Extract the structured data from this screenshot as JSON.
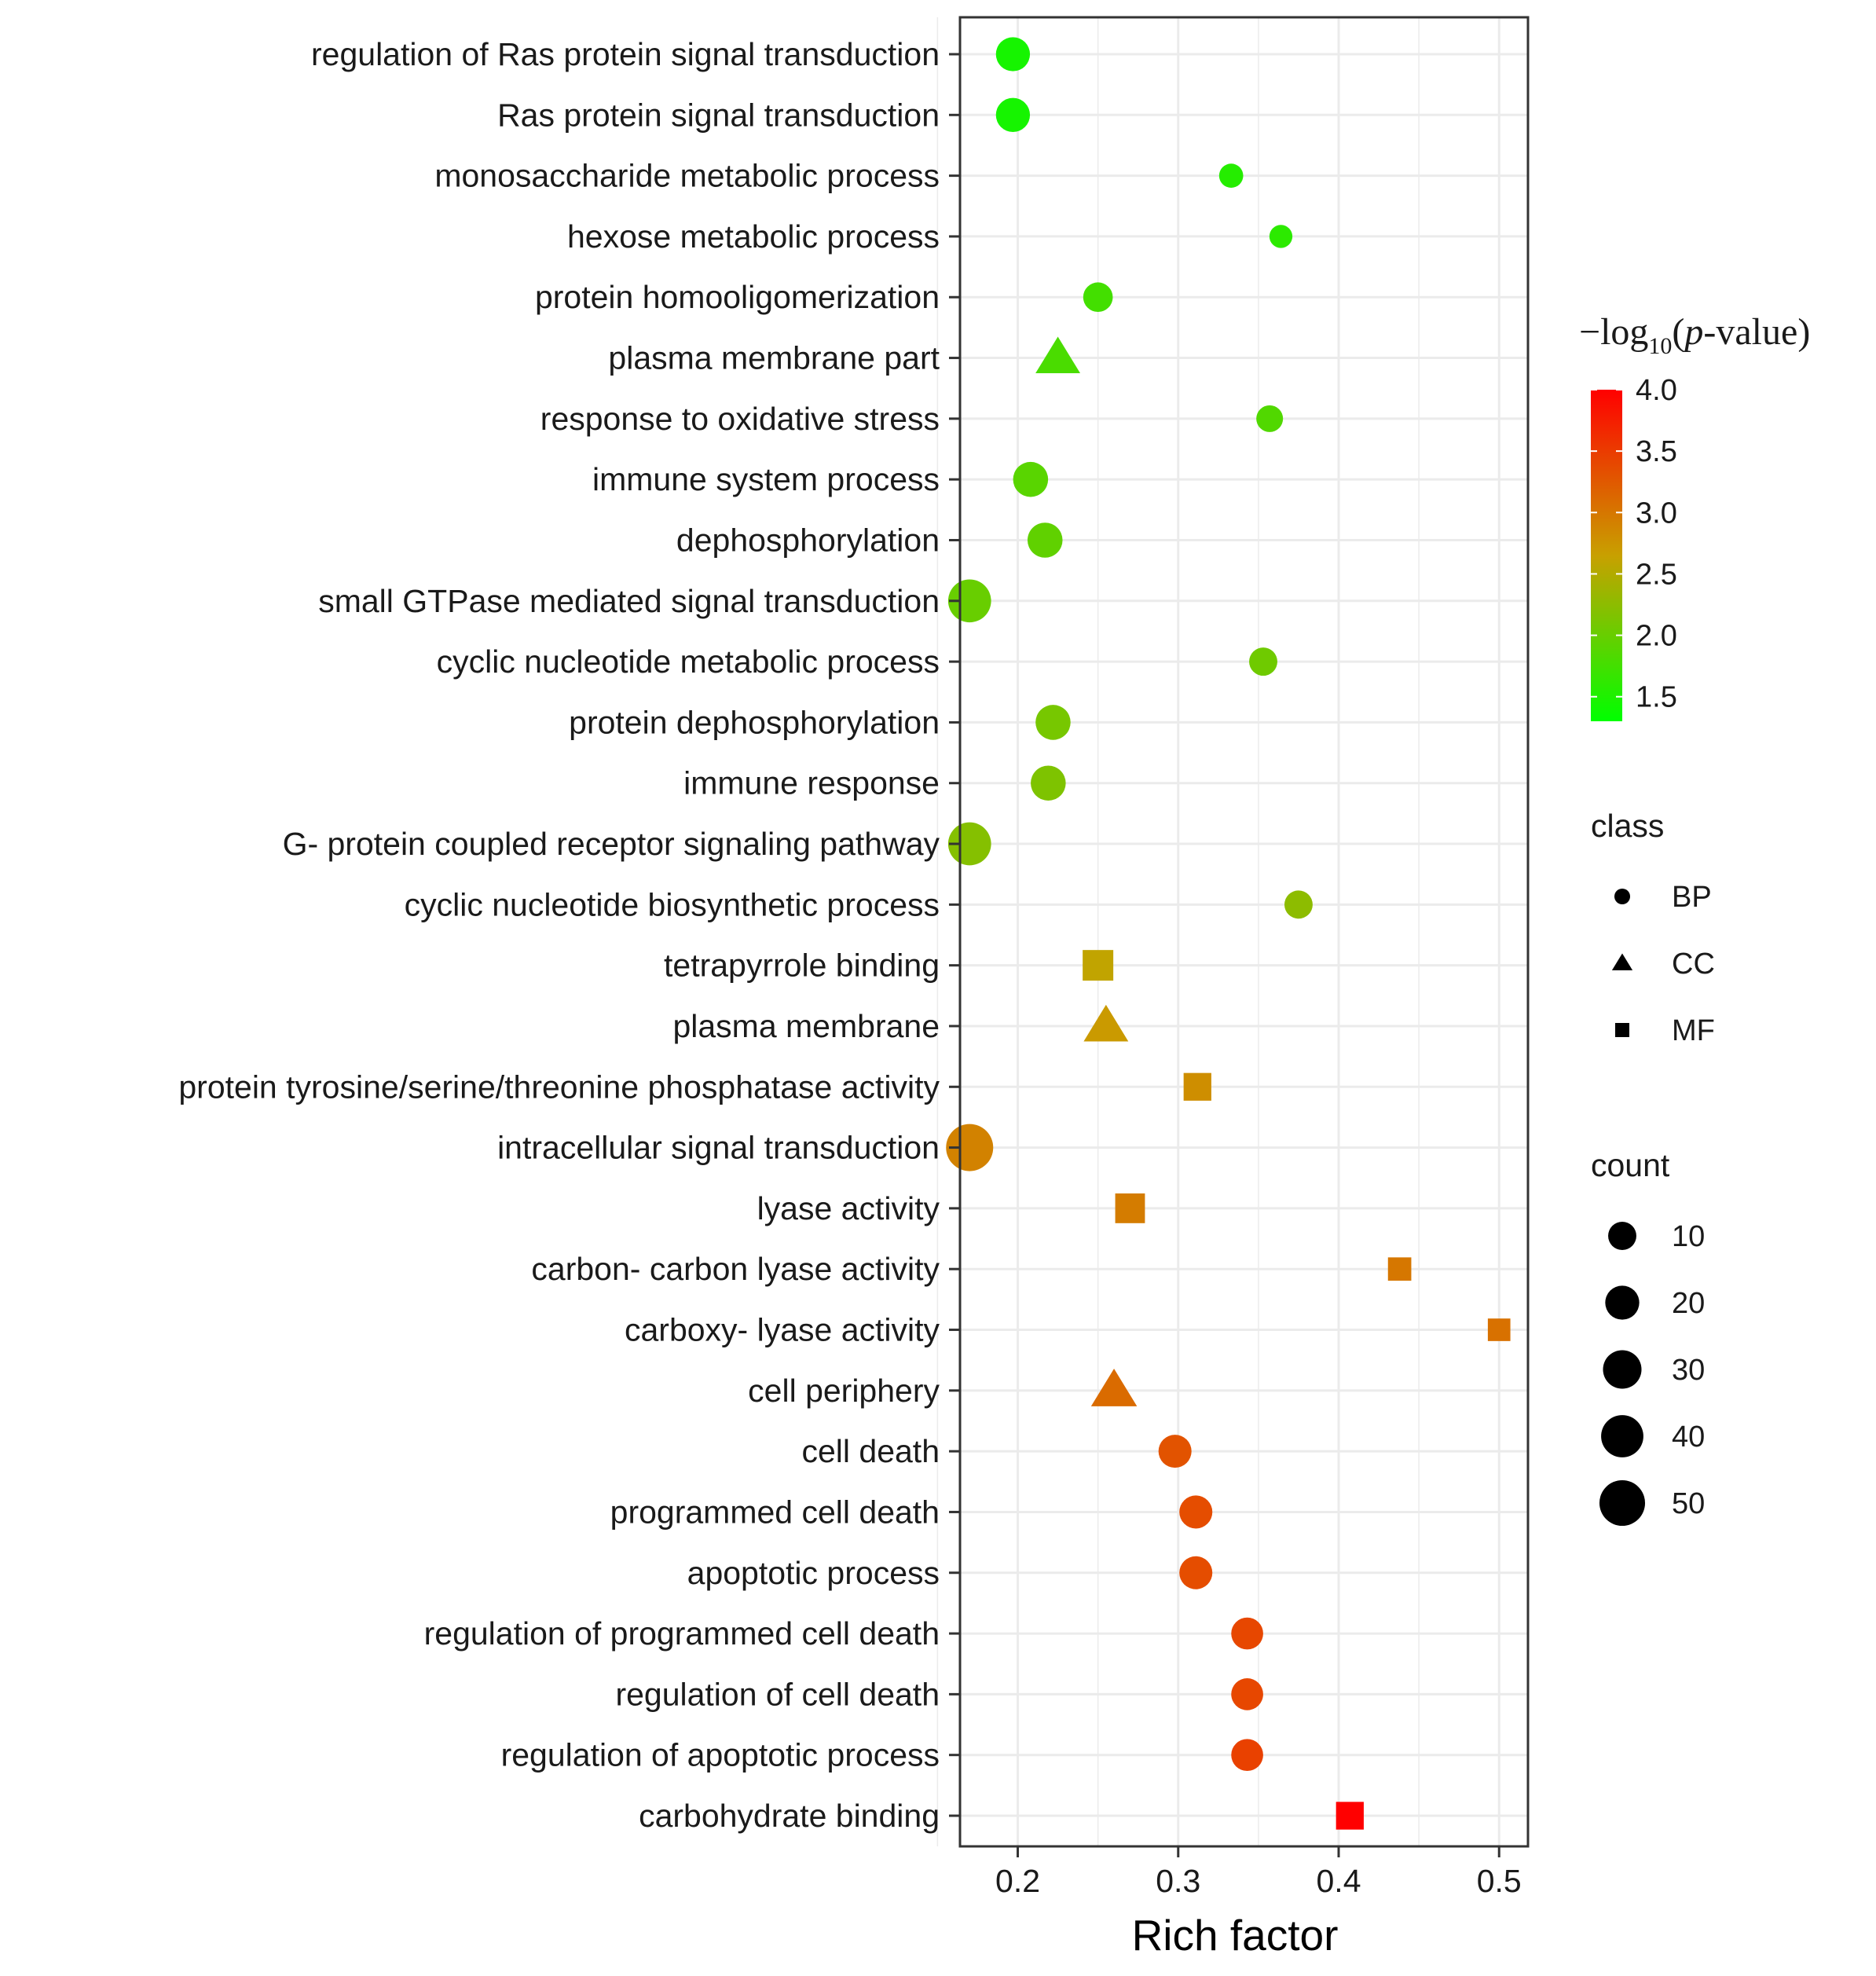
{
  "chart_data": {
    "type": "scatter",
    "xlabel": "Rich factor",
    "xlim": [
      0.164,
      0.518
    ],
    "xticks": [
      "0.2",
      "0.3",
      "0.4",
      "0.5"
    ],
    "color_scale": {
      "title_prefix": "−log",
      "title_sub": "10",
      "title_open": "(",
      "title_italic": "p",
      "title_suffix": "-value)",
      "min": 1.3,
      "max": 4.0,
      "low_color": "#00ff00",
      "mid_color": "#c8a000",
      "high_color": "#ff0000",
      "ticks": [
        "4.0",
        "3.5",
        "3.0",
        "2.5",
        "2.0",
        "1.5"
      ]
    },
    "shape_legend": {
      "title": "class",
      "items": [
        {
          "label": "BP",
          "shape": "circle"
        },
        {
          "label": "CC",
          "shape": "triangle"
        },
        {
          "label": "MF",
          "shape": "square"
        }
      ]
    },
    "size_legend": {
      "title": "count",
      "values": [
        "10",
        "20",
        "30",
        "40",
        "50"
      ]
    },
    "terms": [
      {
        "label": "regulation of Ras protein signal transduction",
        "rich": 0.197,
        "neglog10p": 1.45,
        "count": 20,
        "class": "BP"
      },
      {
        "label": "Ras protein signal transduction",
        "rich": 0.197,
        "neglog10p": 1.45,
        "count": 20,
        "class": "BP"
      },
      {
        "label": "monosaccharide metabolic process",
        "rich": 0.333,
        "neglog10p": 1.55,
        "count": 5,
        "class": "BP"
      },
      {
        "label": "hexose metabolic process",
        "rich": 0.364,
        "neglog10p": 1.6,
        "count": 4,
        "class": "BP"
      },
      {
        "label": "protein homooligomerization",
        "rich": 0.25,
        "neglog10p": 1.75,
        "count": 12,
        "class": "BP"
      },
      {
        "label": "plasma membrane part",
        "rich": 0.225,
        "neglog10p": 1.8,
        "count": 20,
        "class": "CC"
      },
      {
        "label": "response to oxidative stress",
        "rich": 0.357,
        "neglog10p": 1.85,
        "count": 8,
        "class": "BP"
      },
      {
        "label": "immune system process",
        "rich": 0.208,
        "neglog10p": 1.9,
        "count": 22,
        "class": "BP"
      },
      {
        "label": "dephosphorylation",
        "rich": 0.217,
        "neglog10p": 1.95,
        "count": 22,
        "class": "BP"
      },
      {
        "label": "small GTPase mediated signal transduction",
        "rich": 0.17,
        "neglog10p": 2.0,
        "count": 42,
        "class": "BP"
      },
      {
        "label": "cyclic nucleotide metabolic process",
        "rich": 0.353,
        "neglog10p": 2.05,
        "count": 10,
        "class": "BP"
      },
      {
        "label": "protein dephosphorylation",
        "rich": 0.222,
        "neglog10p": 2.1,
        "count": 22,
        "class": "BP"
      },
      {
        "label": "immune response",
        "rich": 0.219,
        "neglog10p": 2.15,
        "count": 22,
        "class": "BP"
      },
      {
        "label": "G- protein coupled receptor signaling pathway",
        "rich": 0.17,
        "neglog10p": 2.2,
        "count": 42,
        "class": "BP"
      },
      {
        "label": "cyclic nucleotide biosynthetic process",
        "rich": 0.375,
        "neglog10p": 2.25,
        "count": 10,
        "class": "BP"
      },
      {
        "label": "tetrapyrrole binding",
        "rich": 0.25,
        "neglog10p": 2.6,
        "count": 20,
        "class": "MF"
      },
      {
        "label": "plasma membrane",
        "rich": 0.255,
        "neglog10p": 2.7,
        "count": 20,
        "class": "CC"
      },
      {
        "label": "protein tyrosine/serine/threonine phosphatase activity",
        "rich": 0.312,
        "neglog10p": 2.8,
        "count": 14,
        "class": "MF"
      },
      {
        "label": "intracellular signal transduction",
        "rich": 0.17,
        "neglog10p": 2.9,
        "count": 55,
        "class": "BP"
      },
      {
        "label": "lyase activity",
        "rich": 0.27,
        "neglog10p": 2.95,
        "count": 18,
        "class": "MF"
      },
      {
        "label": "carbon- carbon lyase activity",
        "rich": 0.438,
        "neglog10p": 3.0,
        "count": 7,
        "class": "MF"
      },
      {
        "label": "carboxy- lyase activity",
        "rich": 0.5,
        "neglog10p": 3.05,
        "count": 6,
        "class": "MF"
      },
      {
        "label": "cell periphery",
        "rich": 0.26,
        "neglog10p": 3.1,
        "count": 22,
        "class": "CC"
      },
      {
        "label": "cell death",
        "rich": 0.298,
        "neglog10p": 3.3,
        "count": 18,
        "class": "BP"
      },
      {
        "label": "programmed cell death",
        "rich": 0.311,
        "neglog10p": 3.35,
        "count": 18,
        "class": "BP"
      },
      {
        "label": "apoptotic process",
        "rich": 0.311,
        "neglog10p": 3.35,
        "count": 18,
        "class": "BP"
      },
      {
        "label": "regulation of programmed cell death",
        "rich": 0.343,
        "neglog10p": 3.4,
        "count": 16,
        "class": "BP"
      },
      {
        "label": "regulation of cell death",
        "rich": 0.343,
        "neglog10p": 3.4,
        "count": 16,
        "class": "BP"
      },
      {
        "label": "regulation of apoptotic process",
        "rich": 0.343,
        "neglog10p": 3.45,
        "count": 16,
        "class": "BP"
      },
      {
        "label": "carbohydrate binding",
        "rich": 0.407,
        "neglog10p": 4.0,
        "count": 14,
        "class": "MF"
      }
    ]
  }
}
